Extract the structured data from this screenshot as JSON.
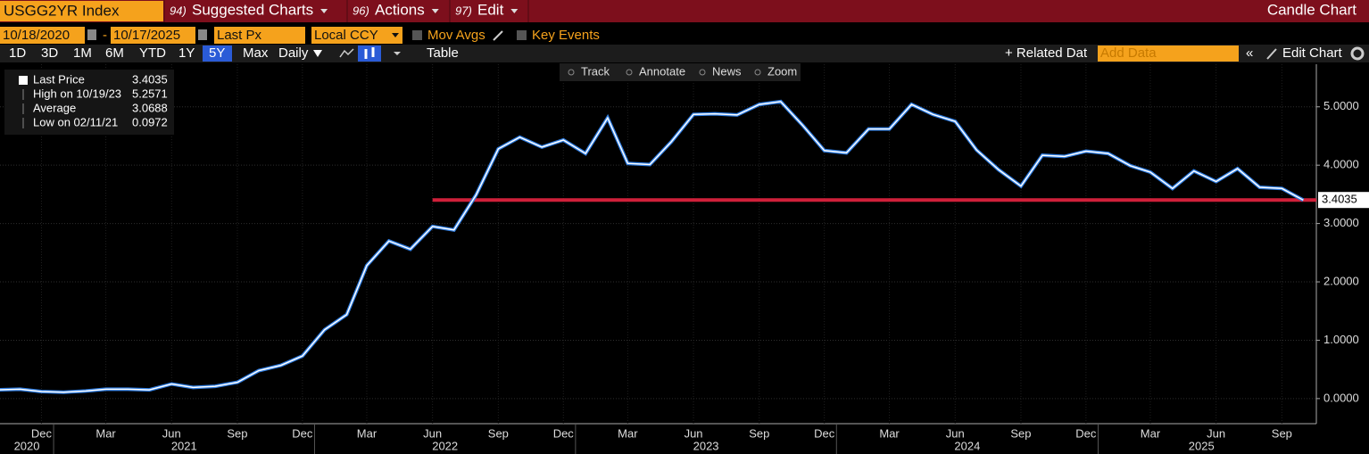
{
  "header": {
    "ticker": "USGG2YR Index",
    "menu": [
      {
        "num": "94)",
        "label": "Suggested Charts"
      },
      {
        "num": "96)",
        "label": "Actions"
      },
      {
        "num": "97)",
        "label": "Edit"
      }
    ],
    "view": "Candle Chart"
  },
  "settings": {
    "start_date": "10/18/2020",
    "dash": "-",
    "end_date": "10/17/2025",
    "field": "Last Px",
    "currency": "Local CCY",
    "mov_avgs": "Mov Avgs",
    "key_events": "Key Events"
  },
  "toolbar": {
    "periods": [
      "1D",
      "3D",
      "1M",
      "6M",
      "YTD",
      "1Y",
      "5Y",
      "Max"
    ],
    "selected_period": 6,
    "frequency": "Daily",
    "table": "Table",
    "related": "+ Related Dat",
    "add_data": "Add Data",
    "edit_chart": "Edit Chart",
    "tools": [
      "Track",
      "Annotate",
      "News",
      "Zoom"
    ]
  },
  "chart_data": {
    "type": "line",
    "legend": [
      {
        "name": "Last Price",
        "value": 3.4035
      },
      {
        "name": "High on 10/19/23",
        "value": 5.2571
      },
      {
        "name": "Average",
        "value": 3.0688
      },
      {
        "name": "Low on 02/11/21",
        "value": 0.0972
      }
    ],
    "x": [
      "2020-10",
      "2020-11",
      "2020-12",
      "2021-01",
      "2021-02",
      "2021-03",
      "2021-04",
      "2021-05",
      "2021-06",
      "2021-07",
      "2021-08",
      "2021-09",
      "2021-10",
      "2021-11",
      "2021-12",
      "2022-01",
      "2022-02",
      "2022-03",
      "2022-04",
      "2022-05",
      "2022-06",
      "2022-07",
      "2022-08",
      "2022-09",
      "2022-10",
      "2022-11",
      "2022-12",
      "2023-01",
      "2023-02",
      "2023-03",
      "2023-04",
      "2023-05",
      "2023-06",
      "2023-07",
      "2023-08",
      "2023-09",
      "2023-10",
      "2023-11",
      "2023-12",
      "2024-01",
      "2024-02",
      "2024-03",
      "2024-04",
      "2024-05",
      "2024-06",
      "2024-07",
      "2024-08",
      "2024-09",
      "2024-10",
      "2024-11",
      "2024-12",
      "2025-01",
      "2025-02",
      "2025-03",
      "2025-04",
      "2025-05",
      "2025-06",
      "2025-07",
      "2025-08",
      "2025-09",
      "2025-10"
    ],
    "series": [
      {
        "name": "Last Price",
        "color": "#ffffff",
        "values": [
          0.15,
          0.16,
          0.12,
          0.11,
          0.13,
          0.16,
          0.16,
          0.15,
          0.25,
          0.19,
          0.21,
          0.28,
          0.48,
          0.57,
          0.73,
          1.18,
          1.44,
          2.28,
          2.7,
          2.56,
          2.95,
          2.89,
          3.49,
          4.28,
          4.48,
          4.31,
          4.43,
          4.2,
          4.81,
          4.03,
          4.01,
          4.4,
          4.87,
          4.88,
          4.86,
          5.04,
          5.09,
          4.68,
          4.25,
          4.21,
          4.62,
          4.62,
          5.04,
          4.87,
          4.75,
          4.26,
          3.92,
          3.64,
          4.17,
          4.15,
          4.24,
          4.2,
          3.99,
          3.88,
          3.6,
          3.9,
          3.72,
          3.94,
          3.62,
          3.6,
          3.4
        ]
      }
    ],
    "reference_line": {
      "value": 3.4035,
      "start": "2022-06",
      "color": "#d0203a"
    },
    "xlim": [
      "2020-10-18",
      "2025-10-17"
    ],
    "xticks": [
      {
        "value": "2020-12",
        "label": "Dec"
      },
      {
        "value": "2021-03",
        "label": "Mar"
      },
      {
        "value": "2021-06",
        "label": "Jun"
      },
      {
        "value": "2021-09",
        "label": "Sep"
      },
      {
        "value": "2021-12",
        "label": "Dec"
      },
      {
        "value": "2022-03",
        "label": "Mar"
      },
      {
        "value": "2022-06",
        "label": "Jun"
      },
      {
        "value": "2022-09",
        "label": "Sep"
      },
      {
        "value": "2022-12",
        "label": "Dec"
      },
      {
        "value": "2023-03",
        "label": "Mar"
      },
      {
        "value": "2023-06",
        "label": "Jun"
      },
      {
        "value": "2023-09",
        "label": "Sep"
      },
      {
        "value": "2023-12",
        "label": "Dec"
      },
      {
        "value": "2024-03",
        "label": "Mar"
      },
      {
        "value": "2024-06",
        "label": "Jun"
      },
      {
        "value": "2024-09",
        "label": "Sep"
      },
      {
        "value": "2024-12",
        "label": "Dec"
      },
      {
        "value": "2025-03",
        "label": "Mar"
      },
      {
        "value": "2025-06",
        "label": "Jun"
      },
      {
        "value": "2025-09",
        "label": "Sep"
      }
    ],
    "years": [
      "2020",
      "2021",
      "2022",
      "2023",
      "2024",
      "2025"
    ],
    "ylim": [
      -0.43,
      5.73
    ],
    "yticks": [
      {
        "value": 0,
        "label": "0.0000"
      },
      {
        "value": 1,
        "label": "1.0000"
      },
      {
        "value": 2,
        "label": "2.0000"
      },
      {
        "value": 3,
        "label": "3.0000"
      },
      {
        "value": 4,
        "label": "4.0000"
      },
      {
        "value": 5,
        "label": "5.0000"
      }
    ],
    "grid": true
  }
}
